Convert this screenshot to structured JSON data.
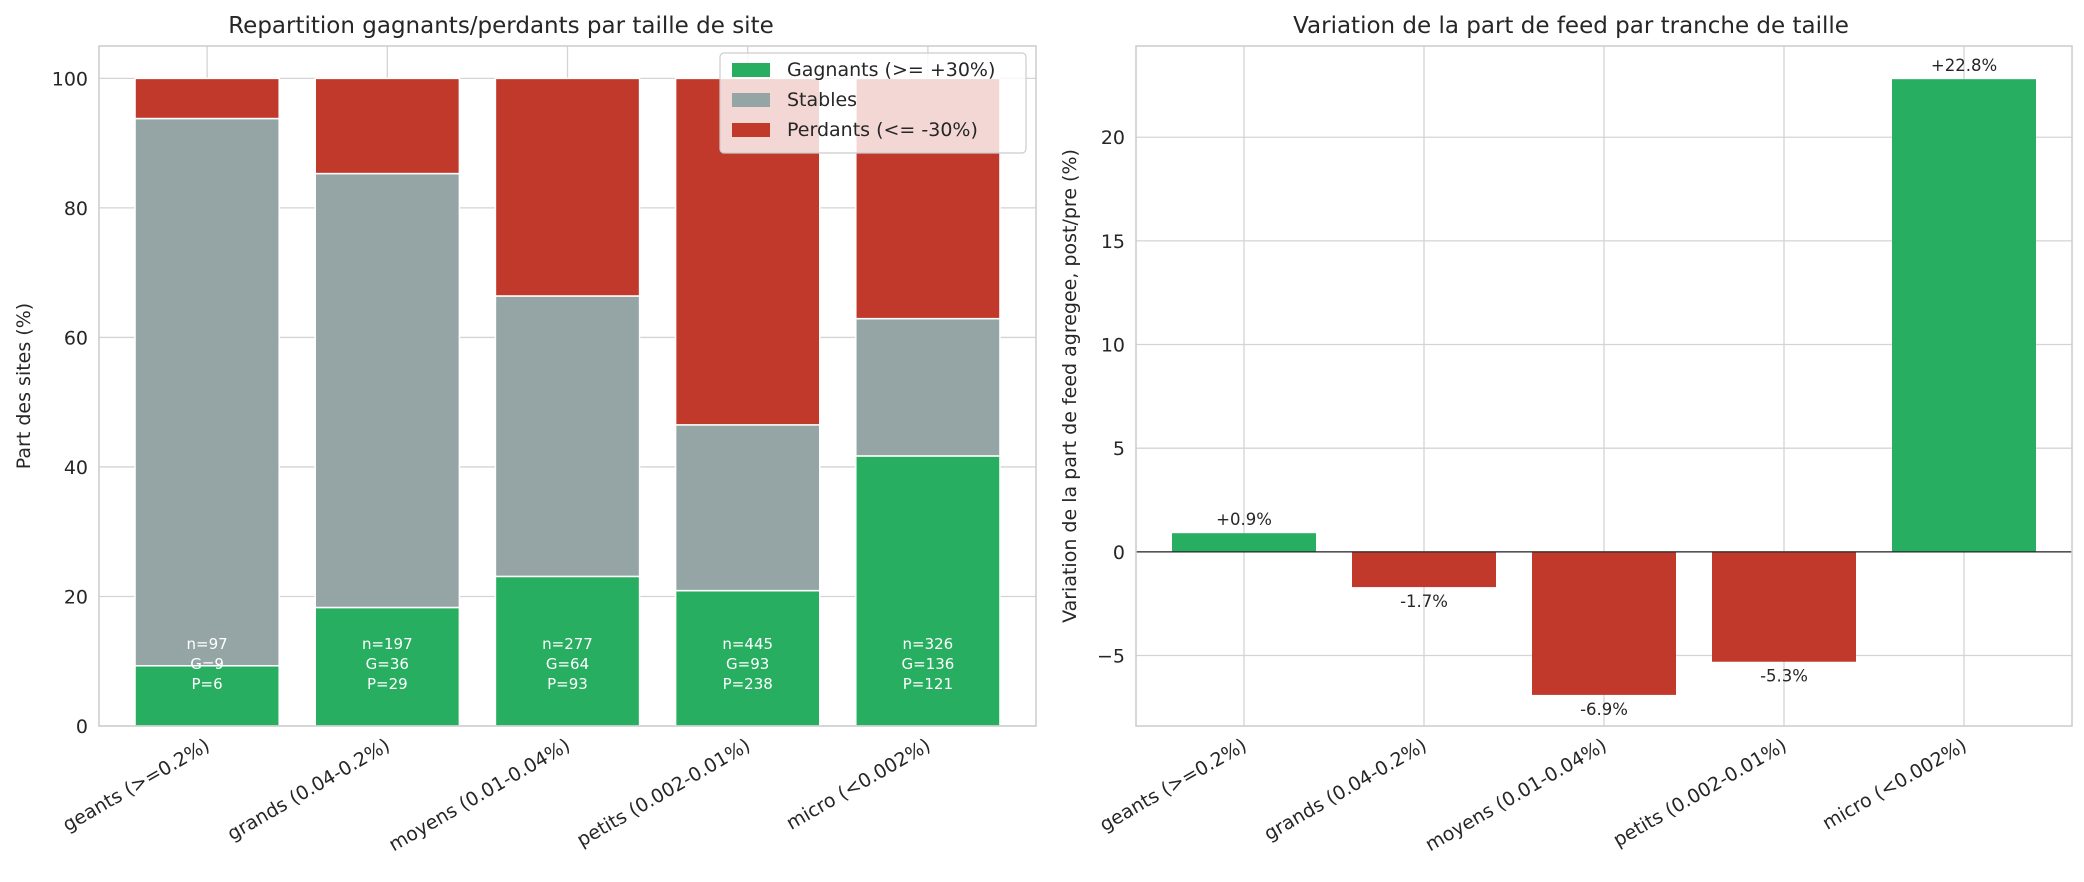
{
  "colors": {
    "gagnants": "#27ae60",
    "stables": "#95a5a6",
    "perdants": "#c0392b",
    "grid": "#d4d4d4",
    "axes": "#cccccc"
  },
  "chart_data": [
    {
      "type": "bar",
      "stacked": true,
      "title": "Repartition gagnants/perdants par taille de site",
      "xlabel": "",
      "ylabel": "Part des sites (%)",
      "ylim": [
        0,
        105
      ],
      "yticks": [
        0,
        20,
        40,
        60,
        80,
        100
      ],
      "grid": true,
      "legend_position": "top-right",
      "categories": [
        "geants (>=0.2%)",
        "grands (0.04-0.2%)",
        "moyens (0.01-0.04%)",
        "petits (0.002-0.01%)",
        "micro (<0.002%)"
      ],
      "series": [
        {
          "name": "Gagnants (>= +30%)",
          "values": [
            9.3,
            18.3,
            23.1,
            20.9,
            41.7
          ]
        },
        {
          "name": "Stables",
          "values": [
            84.5,
            67.0,
            43.3,
            25.6,
            21.2
          ]
        },
        {
          "name": "Perdants (<= -30%)",
          "values": [
            6.2,
            14.7,
            33.6,
            53.5,
            37.1
          ]
        }
      ],
      "bar_annotations": [
        [
          "n=97",
          "G=9",
          "P=6"
        ],
        [
          "n=197",
          "G=36",
          "P=29"
        ],
        [
          "n=277",
          "G=64",
          "P=93"
        ],
        [
          "n=445",
          "G=93",
          "P=238"
        ],
        [
          "n=326",
          "G=136",
          "P=121"
        ]
      ]
    },
    {
      "type": "bar",
      "title": "Variation de la part de feed par tranche de taille",
      "xlabel": "",
      "ylabel": "Variation de la part de feed agregee, post/pre (%)",
      "ylim": [
        -8.4,
        24.4
      ],
      "yticks": [
        -5,
        0,
        5,
        10,
        15,
        20
      ],
      "ytick_labels": [
        "−5",
        "0",
        "5",
        "10",
        "15",
        "20"
      ],
      "grid": true,
      "categories": [
        "geants (>=0.2%)",
        "grands (0.04-0.2%)",
        "moyens (0.01-0.04%)",
        "petits (0.002-0.01%)",
        "micro (<0.002%)"
      ],
      "values": [
        0.9,
        -1.7,
        -6.9,
        -5.3,
        22.8
      ],
      "data_labels": [
        "+0.9%",
        "-1.7%",
        "-6.9%",
        "-5.3%",
        "+22.8%"
      ]
    }
  ]
}
